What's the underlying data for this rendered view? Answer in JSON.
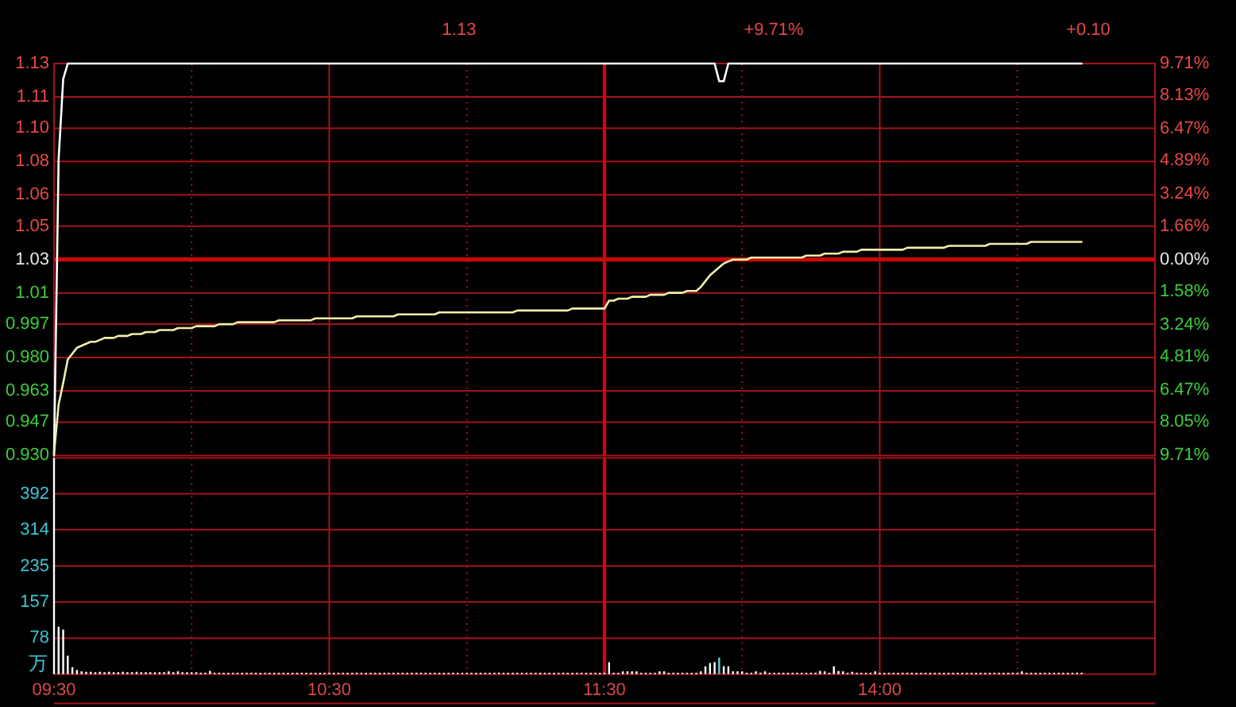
{
  "chart_data": [
    {
      "type": "line",
      "annotations": [
        "1.13",
        "+9.71%",
        "+0.10"
      ],
      "categories": [
        "09:30",
        null,
        null,
        null,
        null,
        null,
        null,
        null,
        null,
        null,
        null,
        null,
        null,
        null,
        null,
        null,
        null,
        null,
        null,
        null,
        null,
        null,
        null,
        null,
        null,
        null,
        null,
        null,
        null,
        null,
        null,
        null,
        null,
        null,
        null,
        null,
        null,
        null,
        null,
        null,
        null,
        null,
        null,
        null,
        null,
        null,
        null,
        null,
        null,
        null,
        null,
        null,
        null,
        null,
        null,
        null,
        null,
        null,
        null,
        null,
        "10:30",
        null,
        null,
        null,
        null,
        null,
        null,
        null,
        null,
        null,
        null,
        null,
        null,
        null,
        null,
        null,
        null,
        null,
        null,
        null,
        null,
        null,
        null,
        null,
        null,
        null,
        null,
        null,
        null,
        null,
        null,
        null,
        null,
        null,
        null,
        null,
        null,
        null,
        null,
        null,
        null,
        null,
        null,
        null,
        null,
        null,
        null,
        null,
        null,
        null,
        null,
        null,
        null,
        null,
        null,
        null,
        null,
        null,
        null,
        null,
        "11:30",
        null,
        null,
        null,
        null,
        null,
        null,
        null,
        null,
        null,
        null,
        null,
        null,
        null,
        null,
        null,
        null,
        null,
        null,
        null,
        null,
        null,
        null,
        null,
        null,
        null,
        null,
        null,
        null,
        null,
        null,
        null,
        null,
        null,
        null,
        null,
        null,
        null,
        null,
        null,
        null,
        null,
        null,
        null,
        null,
        null,
        null,
        null,
        null,
        null,
        null,
        null,
        null,
        null,
        null,
        null,
        null,
        null,
        null,
        null,
        "14:00",
        null,
        null,
        null,
        null,
        null,
        null,
        null,
        null,
        null,
        null,
        null,
        null,
        null,
        null,
        null,
        null,
        null,
        null,
        null,
        null,
        null,
        null,
        null,
        null,
        null,
        null,
        null,
        null,
        null,
        null,
        null,
        null,
        null,
        null,
        null,
        null,
        null,
        null,
        null,
        null,
        null,
        null,
        null,
        null,
        null,
        null,
        null,
        null,
        null,
        null,
        null,
        null,
        null,
        null,
        null,
        null,
        null,
        null,
        null,
        null
      ],
      "ylim": [
        0.93,
        1.13
      ],
      "yticks": [
        {
          "value": 0.93,
          "label": "0.930"
        },
        0.947,
        0.963,
        {
          "value": 0.98,
          "label": "0.980"
        },
        0.997,
        {
          "value": 1.013,
          "label": "1.01"
        },
        1.03,
        {
          "value": 1.047,
          "label": "1.05"
        },
        {
          "value": 1.063,
          "label": "1.06"
        },
        1.08,
        {
          "value": 1.097,
          "label": "1.10"
        },
        {
          "value": 1.113,
          "label": "1.11"
        },
        1.13
      ],
      "y2lim": [
        -9.71,
        9.71
      ],
      "y2ticks": [
        {
          "value": -9.71,
          "label": "9.71%"
        },
        {
          "value": -8.05,
          "label": "8.05%"
        },
        {
          "value": -6.47,
          "label": "6.47%"
        },
        {
          "value": -4.81,
          "label": "4.81%"
        },
        {
          "value": -3.24,
          "label": "3.24%"
        },
        {
          "value": -1.58,
          "label": "1.58%"
        },
        {
          "value": 0,
          "label": "0.00%"
        },
        {
          "value": 1.66,
          "label": "1.66%"
        },
        {
          "value": 3.24,
          "label": "3.24%"
        },
        {
          "value": 4.89,
          "label": "4.89%"
        },
        {
          "value": 6.47,
          "label": "6.47%"
        },
        {
          "value": 8.13,
          "label": "8.13%"
        },
        {
          "value": 9.71,
          "label": "9.71%"
        }
      ],
      "tick_labels": "y",
      "grid": true,
      "ref_lines": [
        {
          "axis": "y",
          "value": 1.03,
          "color": "#c80a0a"
        },
        {
          "axis": "x",
          "value": "11:30",
          "color": "#c80a0a"
        }
      ],
      "series": [
        {
          "color": "#ffffff",
          "values": [
            0.93,
            1.081,
            1.122,
            1.13,
            1.13,
            1.13,
            1.13,
            1.13,
            1.13,
            1.13,
            1.13,
            1.13,
            1.13,
            1.13,
            1.13,
            1.13,
            1.13,
            1.13,
            1.13,
            1.13,
            1.13,
            1.13,
            1.13,
            1.13,
            1.13,
            1.13,
            1.13,
            1.13,
            1.13,
            1.13,
            1.13,
            1.13,
            1.13,
            1.13,
            1.13,
            1.13,
            1.13,
            1.13,
            1.13,
            1.13,
            1.13,
            1.13,
            1.13,
            1.13,
            1.13,
            1.13,
            1.13,
            1.13,
            1.13,
            1.13,
            1.13,
            1.13,
            1.13,
            1.13,
            1.13,
            1.13,
            1.13,
            1.13,
            1.13,
            1.13,
            1.13,
            1.13,
            1.13,
            1.13,
            1.13,
            1.13,
            1.13,
            1.13,
            1.13,
            1.13,
            1.13,
            1.13,
            1.13,
            1.13,
            1.13,
            1.13,
            1.13,
            1.13,
            1.13,
            1.13,
            1.13,
            1.13,
            1.13,
            1.13,
            1.13,
            1.13,
            1.13,
            1.13,
            1.13,
            1.13,
            1.13,
            1.13,
            1.13,
            1.13,
            1.13,
            1.13,
            1.13,
            1.13,
            1.13,
            1.13,
            1.13,
            1.13,
            1.13,
            1.13,
            1.13,
            1.13,
            1.13,
            1.13,
            1.13,
            1.13,
            1.13,
            1.13,
            1.13,
            1.13,
            1.13,
            1.13,
            1.13,
            1.13,
            1.13,
            1.13,
            1.13,
            1.13,
            1.13,
            1.13,
            1.13,
            1.13,
            1.13,
            1.13,
            1.13,
            1.13,
            1.13,
            1.13,
            1.13,
            1.13,
            1.13,
            1.13,
            1.13,
            1.13,
            1.13,
            1.13,
            1.13,
            1.13,
            1.13,
            1.13,
            1.13,
            1.121,
            1.121,
            1.13,
            1.13,
            1.13,
            1.13,
            1.13,
            1.13,
            1.13,
            1.13,
            1.13,
            1.13,
            1.13,
            1.13,
            1.13,
            1.13,
            1.13,
            1.13,
            1.13,
            1.13,
            1.13,
            1.13,
            1.13,
            1.13,
            1.13,
            1.13,
            1.13,
            1.13,
            1.13,
            1.13,
            1.13,
            1.13,
            1.13,
            1.13,
            1.13,
            1.13,
            1.13,
            1.13,
            1.13,
            1.13,
            1.13,
            1.13,
            1.13,
            1.13,
            1.13,
            1.13,
            1.13,
            1.13,
            1.13,
            1.13,
            1.13,
            1.13,
            1.13,
            1.13,
            1.13,
            1.13,
            1.13,
            1.13,
            1.13,
            1.13,
            1.13,
            1.13,
            1.13,
            1.13,
            1.13,
            1.13,
            1.13,
            1.13,
            1.13,
            1.13,
            1.13,
            1.13,
            1.13,
            1.13,
            1.13,
            1.13,
            1.13,
            1.13,
            1.13,
            1.13,
            null,
            null,
            null,
            null,
            null,
            null,
            null,
            null,
            null,
            null,
            null,
            null,
            null,
            null,
            null,
            null
          ]
        },
        {
          "color": "#f2eeaa",
          "values": [
            0.931,
            0.956,
            0.967,
            0.979,
            0.982,
            0.985,
            0.986,
            0.987,
            0.988,
            0.988,
            0.989,
            0.99,
            0.99,
            0.99,
            0.991,
            0.991,
            0.991,
            0.992,
            0.992,
            0.992,
            0.993,
            0.993,
            0.993,
            0.994,
            0.994,
            0.994,
            0.994,
            0.995,
            0.995,
            0.995,
            0.995,
            0.996,
            0.996,
            0.996,
            0.996,
            0.996,
            0.997,
            0.997,
            0.997,
            0.997,
            0.998,
            0.998,
            0.998,
            0.998,
            0.998,
            0.998,
            0.998,
            0.998,
            0.998,
            0.999,
            0.999,
            0.999,
            0.999,
            0.999,
            0.999,
            0.999,
            0.999,
            1.0,
            1.0,
            1.0,
            1.0,
            1.0,
            1.0,
            1.0,
            1.0,
            1.0,
            1.001,
            1.001,
            1.001,
            1.001,
            1.001,
            1.001,
            1.001,
            1.001,
            1.001,
            1.002,
            1.002,
            1.002,
            1.002,
            1.002,
            1.002,
            1.002,
            1.002,
            1.002,
            1.003,
            1.003,
            1.003,
            1.003,
            1.003,
            1.003,
            1.003,
            1.003,
            1.003,
            1.003,
            1.003,
            1.003,
            1.003,
            1.003,
            1.003,
            1.003,
            1.003,
            1.004,
            1.004,
            1.004,
            1.004,
            1.004,
            1.004,
            1.004,
            1.004,
            1.004,
            1.004,
            1.004,
            1.004,
            1.005,
            1.005,
            1.005,
            1.005,
            1.005,
            1.005,
            1.005,
            1.005,
            1.009,
            1.009,
            1.01,
            1.01,
            1.01,
            1.011,
            1.011,
            1.011,
            1.011,
            1.012,
            1.012,
            1.012,
            1.012,
            1.013,
            1.013,
            1.013,
            1.013,
            1.014,
            1.014,
            1.014,
            1.016,
            1.019,
            1.022,
            1.024,
            1.026,
            1.028,
            1.029,
            1.03,
            1.03,
            1.03,
            1.03,
            1.031,
            1.031,
            1.031,
            1.031,
            1.031,
            1.031,
            1.031,
            1.031,
            1.031,
            1.031,
            1.031,
            1.031,
            1.032,
            1.032,
            1.032,
            1.032,
            1.033,
            1.033,
            1.033,
            1.033,
            1.034,
            1.034,
            1.034,
            1.034,
            1.035,
            1.035,
            1.035,
            1.035,
            1.035,
            1.035,
            1.035,
            1.035,
            1.035,
            1.035,
            1.036,
            1.036,
            1.036,
            1.036,
            1.036,
            1.036,
            1.036,
            1.036,
            1.036,
            1.037,
            1.037,
            1.037,
            1.037,
            1.037,
            1.037,
            1.037,
            1.037,
            1.037,
            1.038,
            1.038,
            1.038,
            1.038,
            1.038,
            1.038,
            1.038,
            1.038,
            1.038,
            1.039,
            1.039,
            1.039,
            1.039,
            1.039,
            1.039,
            1.039,
            1.039,
            1.039,
            1.039,
            1.039,
            1.039,
            null,
            null,
            null,
            null,
            null,
            null,
            null,
            null,
            null,
            null,
            null,
            null,
            null,
            null,
            null,
            null
          ]
        }
      ]
    },
    {
      "type": "bar",
      "ylabel": "万",
      "categories": [
        "09:30",
        null,
        null,
        null,
        null,
        null,
        null,
        null,
        null,
        null,
        null,
        null,
        null,
        null,
        null,
        null,
        null,
        null,
        null,
        null,
        null,
        null,
        null,
        null,
        null,
        null,
        null,
        null,
        null,
        null,
        null,
        null,
        null,
        null,
        null,
        null,
        null,
        null,
        null,
        null,
        null,
        null,
        null,
        null,
        null,
        null,
        null,
        null,
        null,
        null,
        null,
        null,
        null,
        null,
        null,
        null,
        null,
        null,
        null,
        null,
        "10:30",
        null,
        null,
        null,
        null,
        null,
        null,
        null,
        null,
        null,
        null,
        null,
        null,
        null,
        null,
        null,
        null,
        null,
        null,
        null,
        null,
        null,
        null,
        null,
        null,
        null,
        null,
        null,
        null,
        null,
        null,
        null,
        null,
        null,
        null,
        null,
        null,
        null,
        null,
        null,
        null,
        null,
        null,
        null,
        null,
        null,
        null,
        null,
        null,
        null,
        null,
        null,
        null,
        null,
        null,
        null,
        null,
        null,
        null,
        null,
        "11:30",
        null,
        null,
        null,
        null,
        null,
        null,
        null,
        null,
        null,
        null,
        null,
        null,
        null,
        null,
        null,
        null,
        null,
        null,
        null,
        null,
        null,
        null,
        null,
        null,
        null,
        null,
        null,
        null,
        null,
        null,
        null,
        null,
        null,
        null,
        null,
        null,
        null,
        null,
        null,
        null,
        null,
        null,
        null,
        null,
        null,
        null,
        null,
        null,
        null,
        null,
        null,
        null,
        null,
        null,
        null,
        null,
        null,
        null,
        null,
        "14:00",
        null,
        null,
        null,
        null,
        null,
        null,
        null,
        null,
        null,
        null,
        null,
        null,
        null,
        null,
        null,
        null,
        null,
        null,
        null,
        null,
        null,
        null,
        null,
        null,
        null,
        null,
        null,
        null,
        null,
        null,
        null,
        null,
        null,
        null,
        null,
        null,
        null,
        null,
        null,
        null,
        null,
        null,
        null,
        null,
        null,
        null,
        null,
        null,
        null,
        null,
        null,
        null,
        null,
        null,
        null,
        null,
        null,
        null,
        null,
        null
      ],
      "ylim": [
        0,
        470
      ],
      "yticks": [
        78,
        157,
        235,
        314,
        392
      ],
      "grid": true,
      "ref_lines": [
        {
          "axis": "x",
          "value": "11:30",
          "color": "#c80a0a"
        }
      ],
      "values": [
        470,
        103,
        97,
        40,
        15,
        9,
        6,
        5,
        5,
        4,
        5,
        4,
        5,
        4,
        4,
        5,
        4,
        4,
        5,
        4,
        4,
        4,
        4,
        4,
        4,
        6,
        4,
        6,
        4,
        4,
        4,
        4,
        3,
        3,
        7,
        3,
        3,
        3,
        3,
        3,
        3,
        3,
        3,
        3,
        3,
        3,
        3,
        3,
        3,
        3,
        3,
        3,
        3,
        3,
        3,
        3,
        3,
        3,
        3,
        3,
        3,
        3,
        3,
        3,
        3,
        3,
        3,
        3,
        3,
        3,
        3,
        3,
        3,
        3,
        3,
        3,
        3,
        3,
        3,
        3,
        3,
        3,
        3,
        3,
        3,
        3,
        3,
        3,
        3,
        3,
        3,
        3,
        3,
        3,
        3,
        3,
        3,
        3,
        3,
        3,
        3,
        3,
        3,
        3,
        3,
        3,
        3,
        3,
        3,
        3,
        3,
        3,
        3,
        3,
        3,
        3,
        3,
        3,
        3,
        3,
        3,
        26,
        3,
        3,
        6,
        6,
        6,
        6,
        3,
        3,
        3,
        3,
        6,
        6,
        3,
        3,
        3,
        3,
        3,
        3,
        3,
        6,
        17,
        24,
        26,
        36,
        17,
        17,
        6,
        6,
        6,
        3,
        3,
        6,
        3,
        6,
        3,
        3,
        3,
        3,
        3,
        3,
        3,
        3,
        3,
        3,
        3,
        7,
        6,
        3,
        17,
        7,
        6,
        3,
        5,
        3,
        3,
        3,
        3,
        6,
        3,
        3,
        3,
        3,
        3,
        3,
        3,
        3,
        3,
        3,
        3,
        3,
        3,
        3,
        3,
        3,
        3,
        3,
        3,
        3,
        3,
        3,
        3,
        3,
        3,
        3,
        3,
        3,
        3,
        3,
        3,
        6,
        3,
        3,
        3,
        3,
        3,
        3,
        3,
        3,
        3,
        3,
        3,
        3,
        3,
        null,
        null,
        null,
        null,
        null,
        null,
        null,
        null,
        null,
        null,
        null,
        null,
        null,
        null,
        null,
        null
      ],
      "colors": [
        "#ffffff",
        "#ffffff",
        "#ffffff",
        "#ffffff",
        "#ffffff",
        "#ffffff",
        "#ffffff",
        "#ffffff",
        "#ffffff",
        "#ffffff",
        "#ffffff",
        "#ffffff",
        "#ffffff",
        "#ffffff",
        "#ffffff",
        "#ffffff",
        "#ffffff",
        "#ffffff",
        "#ffffff",
        "#ffffff",
        "#ffffff",
        "#ffffff",
        "#ffffff",
        "#ffffff",
        "#ffffff",
        "#ffffff",
        "#ffffff",
        "#ffffff",
        "#ffffff",
        "#ffffff",
        "#ffffff",
        "#ffffff",
        "#ffffff",
        "#ffffff",
        "#ffffff",
        "#ffffff",
        "#ffffff",
        "#ffffff",
        "#ffffff",
        "#ffffff",
        "#ffffff",
        "#ffffff",
        "#ffffff",
        "#ffffff",
        "#ffffff",
        "#ffffff",
        "#ffffff",
        "#ffffff",
        "#ffffff",
        "#ffffff",
        "#ffffff",
        "#ffffff",
        "#ffffff",
        "#ffffff",
        "#ffffff",
        "#ffffff",
        "#ffffff",
        "#ffffff",
        "#ffffff",
        "#ffffff",
        "#ffffff",
        "#ffffff",
        "#ffffff",
        "#ffffff",
        "#ffffff",
        "#ffffff",
        "#ffffff",
        "#ffffff",
        "#ffffff",
        "#ffffff",
        "#ffffff",
        "#ffffff",
        "#ffffff",
        "#ffffff",
        "#ffffff",
        "#ffffff",
        "#ffffff",
        "#ffffff",
        "#ffffff",
        "#ffffff",
        "#ffffff",
        "#ffffff",
        "#ffffff",
        "#ffffff",
        "#ffffff",
        "#ffffff",
        "#ffffff",
        "#ffffff",
        "#ffffff",
        "#ffffff",
        "#ffffff",
        "#ffffff",
        "#ffffff",
        "#ffffff",
        "#ffffff",
        "#ffffff",
        "#ffffff",
        "#ffffff",
        "#ffffff",
        "#ffffff",
        "#ffffff",
        "#ffffff",
        "#ffffff",
        "#ffffff",
        "#ffffff",
        "#ffffff",
        "#ffffff",
        "#ffffff",
        "#ffffff",
        "#ffffff",
        "#ffffff",
        "#ffffff",
        "#ffffff",
        "#ffffff",
        "#ffffff",
        "#ffffff",
        "#ffffff",
        "#ffffff",
        "#ffffff",
        "#ffffff",
        "#ffffff",
        "#ffffff",
        "#ffffff",
        "#ffffff",
        "#ffffff",
        "#ffffff",
        "#ffffff",
        "#ffffff",
        "#ffffff",
        "#ffffff",
        "#ffffff",
        "#ffffff",
        "#ffffff",
        "#ffffff",
        "#ffffff",
        "#ffffff",
        "#ffffff",
        "#ffffff",
        "#ffffff",
        "#ffffff",
        "#ffffff",
        "#ffffff",
        "#ffffff",
        "#ffffff",
        "#ffffff",
        "#5fd0e0",
        "#ffffff",
        "#ffffff",
        "#ffffff",
        "#ffffff",
        "#ffffff",
        "#ffffff",
        "#ffffff",
        "#ffffff",
        "#ffffff",
        "#ffffff",
        "#ffffff",
        "#ffffff",
        "#ffffff",
        "#ffffff",
        "#ffffff",
        "#ffffff",
        "#ffffff",
        "#ffffff",
        "#ffffff",
        "#ffffff",
        "#ffffff",
        "#ffffff",
        "#ffffff",
        "#ffffff",
        "#ffffff",
        "#ffffff",
        "#ffffff",
        "#ffffff",
        "#ffffff",
        "#ffffff",
        "#ffffff",
        "#ffffff",
        "#ffffff",
        "#ffffff",
        "#ffffff",
        "#ffffff",
        "#ffffff",
        "#ffffff",
        "#ffffff",
        "#ffffff",
        "#ffffff",
        "#ffffff",
        "#ffffff",
        "#ffffff",
        "#ffffff",
        "#ffffff",
        "#ffffff",
        "#ffffff",
        "#ffffff",
        "#ffffff",
        "#ffffff",
        "#ffffff",
        "#ffffff",
        "#ffffff",
        "#ffffff",
        "#ffffff",
        "#ffffff",
        "#ffffff",
        "#ffffff",
        "#ffffff",
        "#ffffff",
        "#ffffff",
        "#ffffff",
        "#ffffff",
        "#ffffff",
        "#ffffff",
        "#ffffff",
        "#ffffff",
        "#ffffff",
        "#ffffff",
        "#ffffff",
        "#ffffff",
        "#ffffff",
        "#ffffff",
        "#ffffff",
        "#ffffff",
        "#ffffff",
        "#ffffff",
        "#ffffff",
        null,
        null,
        null,
        null,
        null,
        null,
        null,
        null,
        null,
        null,
        null,
        null,
        null,
        null,
        null,
        null
      ]
    }
  ]
}
